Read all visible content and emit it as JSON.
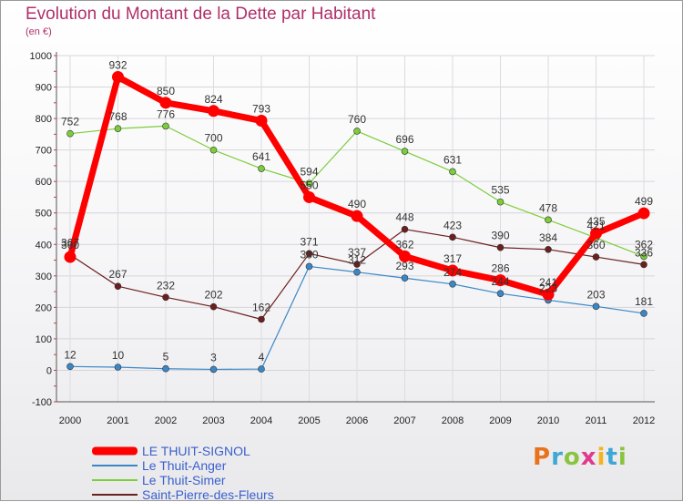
{
  "header": {
    "title": "Evolution du Montant de la Dette par Habitant",
    "subtitle": "(en €)"
  },
  "brand": {
    "text": "Proxiti",
    "colors": [
      "#e8731c",
      "#3fa7d6",
      "#8ac43f",
      "#e03a8f",
      "#f4b51c",
      "#3fa7d6",
      "#8ac43f"
    ]
  },
  "chart_data": {
    "type": "line",
    "title": "Evolution du Montant de la Dette par Habitant",
    "xlabel": "",
    "ylabel": "(en €)",
    "ylim": [
      -100,
      1000
    ],
    "yticks": [
      -100,
      0,
      100,
      200,
      300,
      400,
      500,
      600,
      700,
      800,
      900,
      1000
    ],
    "x": [
      "2000",
      "2001",
      "2002",
      "2003",
      "2004",
      "2005",
      "2006",
      "2007",
      "2008",
      "2009",
      "2010",
      "2011",
      "2012"
    ],
    "grid": true,
    "legend_position": "bottom-left",
    "series": [
      {
        "name": "LE THUIT-SIGNOL",
        "color": "#ff0000",
        "values": [
          360,
          932,
          850,
          824,
          793,
          550,
          490,
          362,
          317,
          286,
          241,
          435,
          499
        ]
      },
      {
        "name": "Le Thuit-Anger",
        "color": "#3a87c8",
        "values": [
          12,
          10,
          5,
          3,
          4,
          330,
          312,
          293,
          274,
          244,
          223,
          203,
          181
        ]
      },
      {
        "name": "Le Thuit-Simer",
        "color": "#7ccd3a",
        "values": [
          752,
          768,
          776,
          700,
          641,
          594,
          760,
          696,
          631,
          535,
          478,
          421,
          362
        ]
      },
      {
        "name": "Saint-Pierre-des-Fleurs",
        "color": "#6b1f1f",
        "values": [
          367,
          267,
          232,
          202,
          162,
          371,
          337,
          448,
          423,
          390,
          384,
          360,
          336
        ]
      }
    ]
  }
}
